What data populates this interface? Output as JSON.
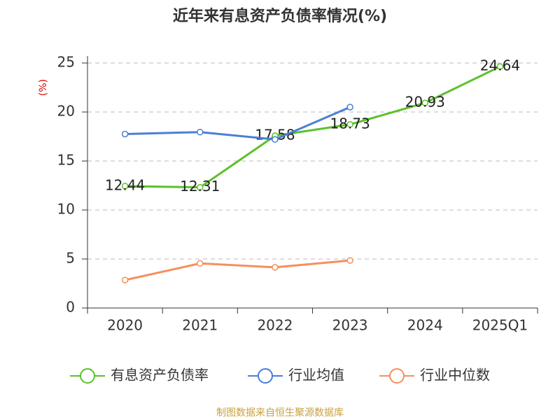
{
  "chart_data": {
    "type": "line",
    "title": "近年来有息资产负债率情况(%)",
    "y_label": "(%)",
    "source": "制图数据来自恒生聚源数据库",
    "categories": [
      "2020",
      "2021",
      "2022",
      "2023",
      "2024",
      "2025Q1"
    ],
    "series": [
      {
        "name": "有息资产负债率",
        "color": "#5cc12b",
        "values": [
          12.44,
          12.31,
          17.58,
          18.73,
          20.93,
          24.64
        ],
        "show_labels": true
      },
      {
        "name": "行业均值",
        "color": "#4a7fd6",
        "values": [
          17.75,
          17.95,
          17.2,
          20.5,
          null,
          null
        ],
        "show_labels": false
      },
      {
        "name": "行业中位数",
        "color": "#f58f5c",
        "values": [
          2.85,
          4.55,
          4.15,
          4.85,
          null,
          null
        ],
        "show_labels": false
      }
    ],
    "ylim": [
      0,
      25
    ],
    "yticks": [
      0,
      5,
      10,
      15,
      20,
      25
    ],
    "grid": true,
    "legend": "bottom"
  }
}
